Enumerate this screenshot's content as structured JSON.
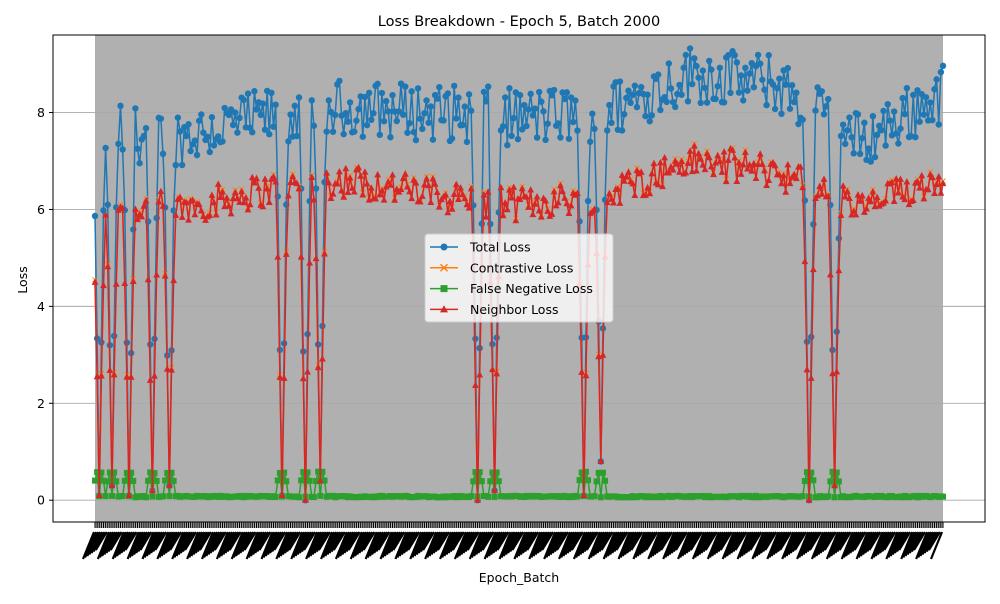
{
  "chart_data": {
    "type": "line",
    "title": "Loss Breakdown - Epoch 5, Batch 2000",
    "xlabel": "Epoch_Batch",
    "ylabel": "Loss",
    "ylim": [
      -0.45,
      9.6
    ],
    "yticks": [
      0,
      2,
      4,
      6,
      8
    ],
    "grid": true,
    "x_tick_labels_legible": false,
    "x_points": 400,
    "legend_position": "center",
    "colors": {
      "total": "#1f77b4",
      "contrastive": "#ff7f0e",
      "false_negative": "#2ca02c",
      "neighbor": "#d62728",
      "plot_background": "#b0b0b0"
    },
    "base_levels": {
      "anchors_index": [
        0,
        40,
        80,
        120,
        160,
        200,
        240,
        280,
        320,
        360,
        399
      ],
      "total": [
        7.6,
        7.5,
        7.9,
        8.1,
        8.0,
        7.9,
        8.0,
        8.8,
        8.6,
        7.4,
        8.4
      ],
      "neighbor": [
        6.1,
        6.0,
        6.4,
        6.6,
        6.3,
        6.1,
        6.3,
        7.0,
        6.8,
        6.0,
        6.7
      ],
      "false_negative": [
        0.06,
        0.06,
        0.06,
        0.06,
        0.06,
        0.06,
        0.06,
        0.06,
        0.06,
        0.06,
        0.06
      ]
    },
    "dips": [
      {
        "index": 2,
        "value": 0.1
      },
      {
        "index": 8,
        "value": 0.3
      },
      {
        "index": 16,
        "value": 0.1
      },
      {
        "index": 27,
        "value": 0.2
      },
      {
        "index": 35,
        "value": 0.3
      },
      {
        "index": 88,
        "value": 0.1
      },
      {
        "index": 99,
        "value": 0.0
      },
      {
        "index": 106,
        "value": 0.4
      },
      {
        "index": 180,
        "value": 0.0
      },
      {
        "index": 188,
        "value": 0.2
      },
      {
        "index": 230,
        "value": 0.1
      },
      {
        "index": 238,
        "value": 0.8
      },
      {
        "index": 336,
        "value": 0.0
      },
      {
        "index": 348,
        "value": 0.3
      }
    ],
    "series": [
      {
        "name": "Total Loss",
        "color_key": "total",
        "marker": "circle"
      },
      {
        "name": "Contrastive Loss",
        "color_key": "contrastive",
        "marker": "x"
      },
      {
        "name": "False Negative Loss",
        "color_key": "false_negative",
        "marker": "square"
      },
      {
        "name": "Neighbor Loss",
        "color_key": "neighbor",
        "marker": "triangle"
      }
    ]
  }
}
